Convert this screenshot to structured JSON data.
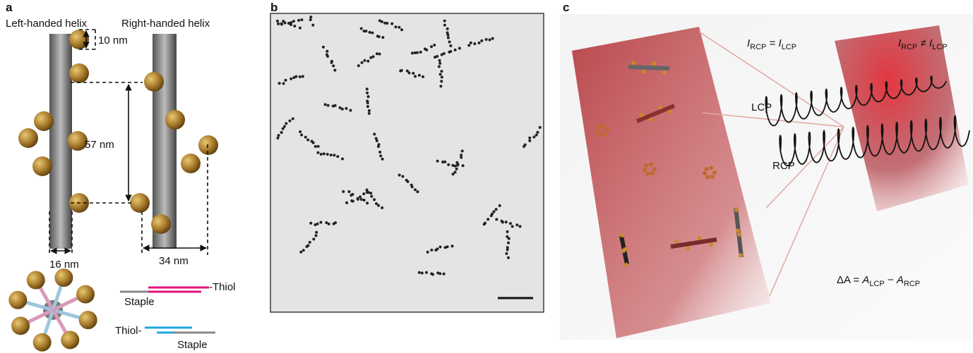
{
  "panel_a": {
    "label": "a",
    "left_title": "Left-handed helix",
    "right_title": "Right-handed helix",
    "dim_top": "10 nm",
    "dim_mid": "57 nm",
    "dim_left": "16 nm",
    "dim_right": "34 nm",
    "legend_top": {
      "thiol": "-Thiol",
      "staple": "Staple"
    },
    "legend_bottom": {
      "thiol": "Thiol-",
      "staple": "Staple"
    }
  },
  "panel_b": {
    "label": "b"
  },
  "panel_c": {
    "label": "c",
    "eq_equal": {
      "i1": "I",
      "s1": "RCP",
      "op": " = ",
      "i2": "I",
      "s2": "LCP"
    },
    "eq_unequal": {
      "i1": "I",
      "s1": "RCP",
      "op": " ≠ ",
      "i2": "I",
      "s2": "LCP"
    },
    "lcp": "LCP",
    "rcp": "RCP",
    "eq_delta": {
      "lhs": "ΔA = ",
      "a1": "A",
      "s1": "LCP",
      "op": " − ",
      "a2": "A",
      "s2": "RCP"
    }
  }
}
